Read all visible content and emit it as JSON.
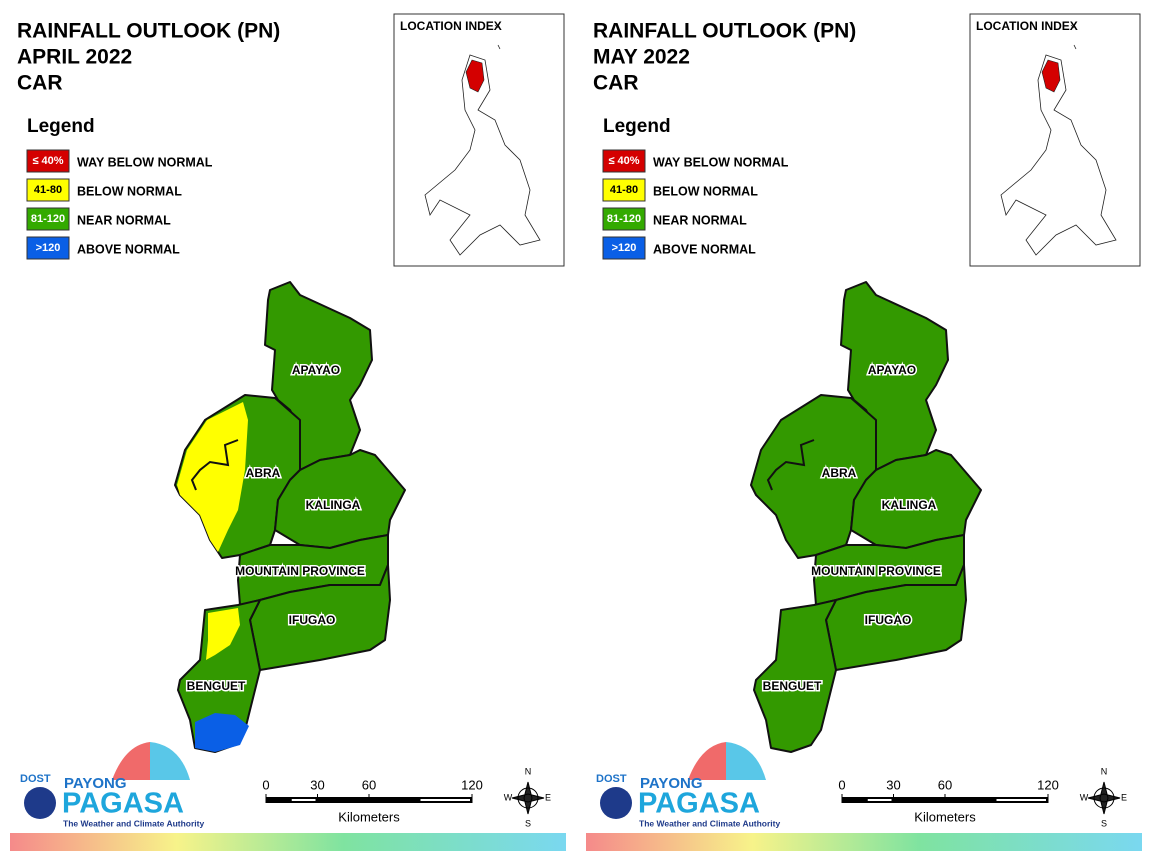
{
  "panels": [
    {
      "title": [
        "RAINFALL OUTLOOK (PN)",
        "APRIL 2022",
        "CAR"
      ]
    },
    {
      "title": [
        "RAINFALL OUTLOOK (PN)",
        "MAY 2022",
        "CAR"
      ]
    }
  ],
  "legend": {
    "title": "Legend",
    "items": [
      {
        "range": "≤ 40%",
        "label": "WAY BELOW NORMAL",
        "color": "#d40000"
      },
      {
        "range": "41-80",
        "label": "BELOW NORMAL",
        "color": "#ffff00"
      },
      {
        "range": "81-120",
        "label": "NEAR NORMAL",
        "color": "#33aa00"
      },
      {
        "range": ">120",
        "label": "ABOVE NORMAL",
        "color": "#0a5fe6"
      }
    ]
  },
  "location_index": "LOCATION INDEX",
  "provinces": [
    "APAYAO",
    "ABRA",
    "KALINGA",
    "MOUNTAIN PROVINCE",
    "IFUGAO",
    "BENGUET"
  ],
  "scale": {
    "ticks": [
      0,
      30,
      60,
      120
    ],
    "unit": "Kilometers"
  },
  "compass": [
    "N",
    "E",
    "S",
    "W"
  ],
  "logo": {
    "agency": "DOST",
    "brand_top": "PAYONG",
    "brand": "PAGASA",
    "tagline": "The Weather and Climate Authority"
  }
}
